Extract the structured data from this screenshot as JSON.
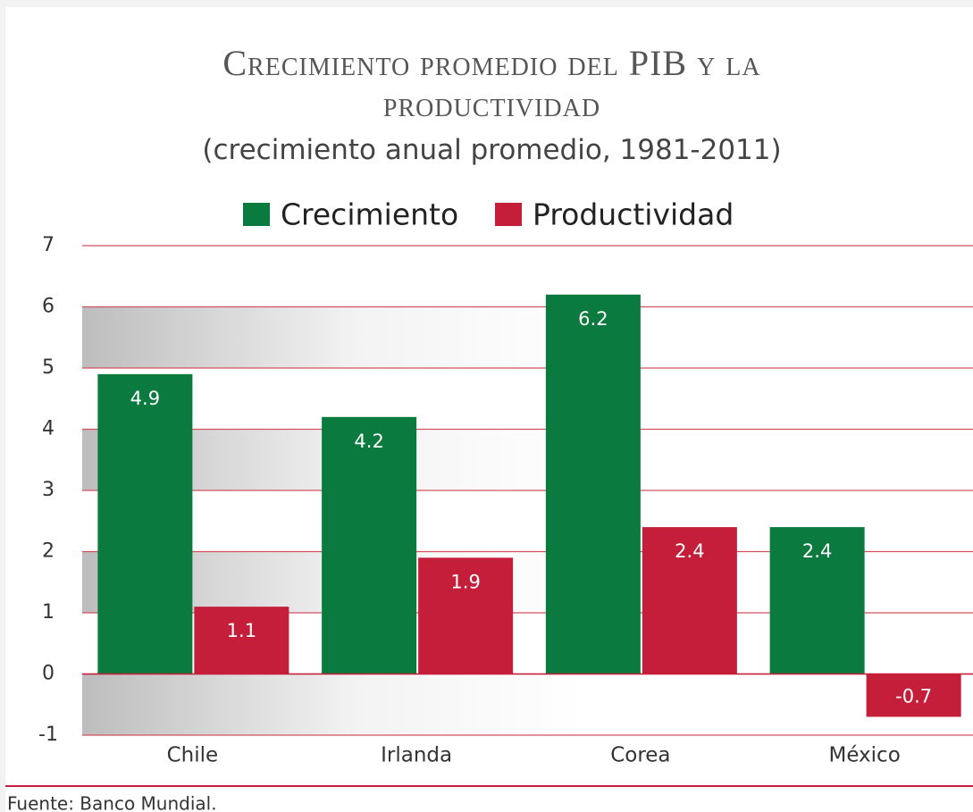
{
  "chart_data": {
    "type": "bar",
    "title": "Crecimiento promedio del PIB y la productividad",
    "subtitle": "(crecimiento anual promedio, 1981-2011)",
    "categories": [
      "Chile",
      "Irlanda",
      "Corea",
      "México"
    ],
    "series": [
      {
        "name": "Crecimiento",
        "color": "#0a7a3e",
        "values": [
          4.9,
          4.2,
          6.2,
          2.4
        ]
      },
      {
        "name": "Productividad",
        "color": "#c41e3a",
        "values": [
          1.1,
          1.9,
          2.4,
          -0.7
        ]
      }
    ],
    "ylim": [
      -1,
      7
    ],
    "yticks": [
      -1,
      0,
      1,
      2,
      3,
      4,
      5,
      6,
      7
    ],
    "grid": true,
    "legend": "top",
    "source": "Fuente: Banco Mundial."
  }
}
